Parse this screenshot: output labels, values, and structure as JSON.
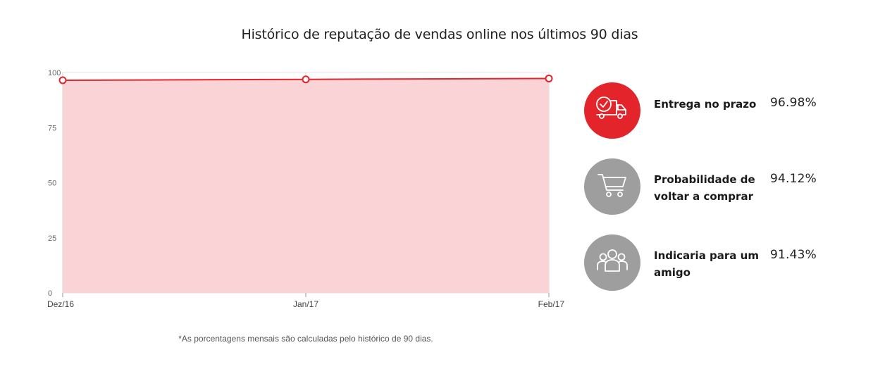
{
  "chart_data": {
    "type": "area",
    "title": "Histórico de reputação de vendas online nos últimos 90 dias",
    "categories": [
      "Dez/16",
      "Jan/17",
      "Feb/17"
    ],
    "series": [
      {
        "values": [
          96.5,
          96.9,
          97.3
        ]
      }
    ],
    "ylim": [
      0,
      100
    ],
    "y_ticks": [
      0,
      25,
      50,
      75,
      100
    ],
    "grid": true,
    "line_color": "#e3242b",
    "fill_color": "#f9d3d5"
  },
  "footnote": "*As porcentagens mensais são calculadas pelo histórico de 90 dias.",
  "metrics": [
    {
      "icon": "delivery-truck-icon",
      "color": "#e3242b",
      "label": "Entrega no prazo",
      "value": "96.98%"
    },
    {
      "icon": "shopping-cart-icon",
      "color": "#9e9e9e",
      "label": "Probabilidade de voltar a comprar",
      "value": "94.12%"
    },
    {
      "icon": "group-people-icon",
      "color": "#9e9e9e",
      "label": "Indicaria para um amigo",
      "value": "91.43%"
    }
  ]
}
